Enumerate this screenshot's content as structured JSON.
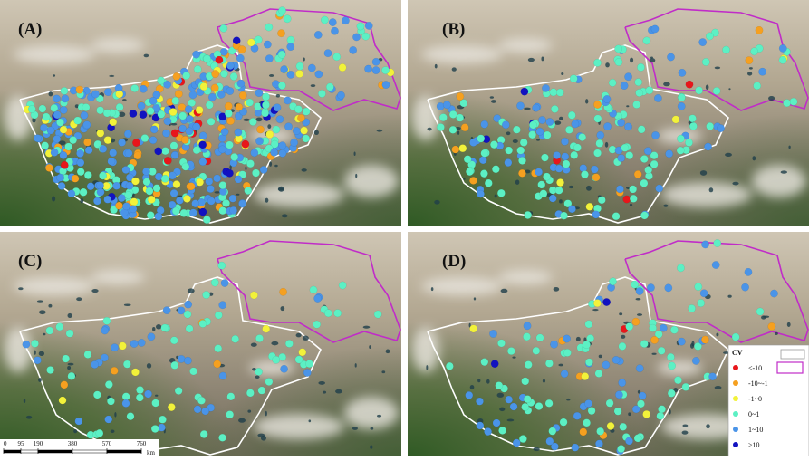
{
  "panels": [
    {
      "label": "(A)"
    },
    {
      "label": "(B)"
    },
    {
      "label": "(C)"
    },
    {
      "label": "(D)"
    }
  ],
  "legend": {
    "title": "CV",
    "items": [
      {
        "label": "<-10",
        "color": "#e8161b"
      },
      {
        "label": "-10~-1",
        "color": "#f5a020"
      },
      {
        "label": "-1~0",
        "color": "#f2f23a"
      },
      {
        "label": "0~1",
        "color": "#5cf0c4"
      },
      {
        "label": "1~10",
        "color": "#4a94e8"
      },
      {
        "label": ">10",
        "color": "#1212c0"
      }
    ]
  },
  "scale_bar": {
    "ticks": [
      0,
      95,
      190,
      380,
      570,
      760
    ],
    "unit": "km"
  }
}
